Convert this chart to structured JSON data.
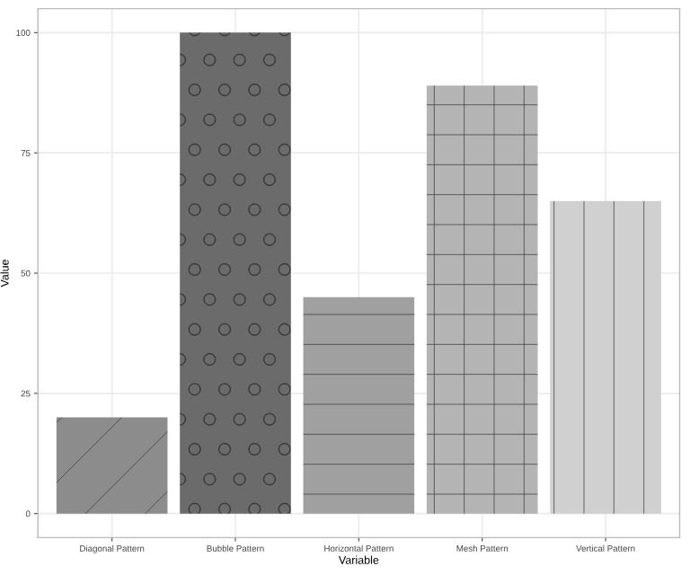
{
  "chart_data": {
    "type": "bar",
    "xlabel": "Variable",
    "ylabel": "Value",
    "categories": [
      "Diagonal Pattern",
      "Bubble Pattern",
      "Horizontal Pattern",
      "Mesh Pattern",
      "Vertical Pattern"
    ],
    "values": [
      20,
      100,
      45,
      89,
      65
    ],
    "colors": [
      "#8c8c8c",
      "#6b6b6b",
      "#a0a0a0",
      "#b4b4b4",
      "#d0d0d0"
    ],
    "ylim": [
      -5,
      105
    ],
    "yticks": [
      0,
      25,
      50,
      75,
      100
    ],
    "grid": true
  }
}
